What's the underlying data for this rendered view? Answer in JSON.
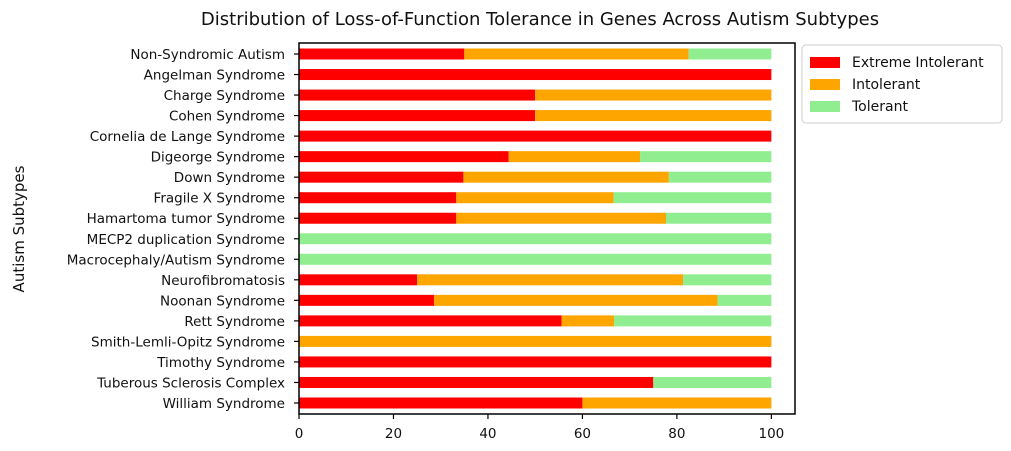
{
  "chart_data": {
    "type": "bar",
    "orientation": "horizontal",
    "stacked": true,
    "title": "Distribution of Loss-of-Function Tolerance in Genes Across Autism Subtypes",
    "xlabel": "",
    "ylabel": "Autism Subtypes",
    "xlim": [
      0,
      105
    ],
    "xticks": [
      0,
      20,
      40,
      60,
      80,
      100
    ],
    "grid": false,
    "legend_position": "outside-top-right",
    "categories": [
      "Non-Syndromic Autism",
      "Angelman Syndrome",
      "Charge Syndrome",
      "Cohen Syndrome",
      "Cornelia de Lange Syndrome",
      "Digeorge Syndrome",
      "Down Syndrome",
      "Fragile X Syndrome",
      "Hamartoma tumor Syndrome",
      "MECP2 duplication Syndrome",
      "Macrocephaly/Autism Syndrome ",
      "Neurofibromatosis",
      "Noonan Syndrome",
      "Rett Syndrome",
      "Smith-Lemli-Opitz Syndrome",
      "Timothy Syndrome",
      "Tuberous Sclerosis Complex",
      "William Syndrome"
    ],
    "series": [
      {
        "name": "Extreme Intolerant",
        "color": "#ff0000",
        "values": [
          35,
          100,
          50,
          50,
          100,
          44.4,
          34.8,
          33.3,
          33.3,
          0,
          0,
          25,
          28.6,
          55.6,
          0,
          100,
          75,
          60
        ]
      },
      {
        "name": "Intolerant",
        "color": "#ffa500",
        "values": [
          47.5,
          0,
          50,
          50,
          0,
          27.8,
          43.5,
          33.3,
          44.4,
          0,
          0,
          56.3,
          60,
          11.1,
          100,
          0,
          0,
          40
        ]
      },
      {
        "name": "Tolerant",
        "color": "#90ee90",
        "values": [
          17.5,
          0,
          0,
          0,
          0,
          27.8,
          21.7,
          33.4,
          22.3,
          100,
          100,
          18.7,
          11.4,
          33.3,
          0,
          0,
          25,
          0
        ]
      }
    ]
  }
}
